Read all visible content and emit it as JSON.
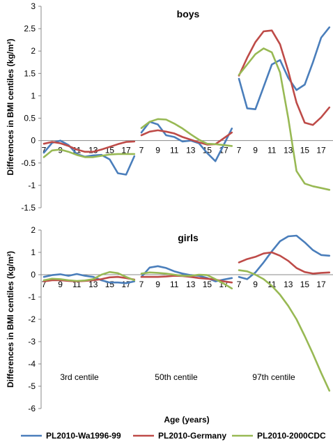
{
  "colors": {
    "PL2010-Wa1996-99": "#4a7ebb",
    "PL2010-Germany": "#be4b48",
    "PL2010-2000CDC": "#98b954"
  },
  "chart_data": {
    "type": "line",
    "xlabel": "Age (years)",
    "x_tick_labels": [
      "7",
      "9",
      "11",
      "13",
      "15",
      "17"
    ],
    "legend": [
      "PL2010-Wa1996-99",
      "PL2010-Germany",
      "PL2010-2000CDC"
    ],
    "legend_position": "bottom",
    "group_labels": [
      "3rd centile",
      "50th centile",
      "97th centile"
    ],
    "ages": [
      7,
      8,
      9,
      10,
      11,
      12,
      13,
      14,
      15,
      16,
      17,
      18
    ],
    "panels": [
      {
        "title": "boys",
        "ylabel": "Differences in BMI centiles (kg/m²)",
        "ylim": [
          -1.5,
          3
        ],
        "yticks": [
          "3",
          "2.5",
          "2",
          "1.5",
          "1",
          "0.5",
          "0",
          "-0.5",
          "-1",
          "-1.5"
        ],
        "groups": [
          {
            "centile": "3rd centile",
            "series": [
              {
                "name": "PL2010-Wa1996-99",
                "values": [
                  -0.27,
                  -0.05,
                  0.0,
                  -0.1,
                  -0.3,
                  -0.36,
                  -0.33,
                  -0.32,
                  -0.42,
                  -0.73,
                  -0.76,
                  -0.35
                ]
              },
              {
                "name": "PL2010-Germany",
                "values": [
                  -0.07,
                  -0.03,
                  -0.06,
                  -0.12,
                  -0.2,
                  -0.25,
                  -0.25,
                  -0.2,
                  -0.14,
                  -0.08,
                  -0.03,
                  -0.02
                ]
              },
              {
                "name": "PL2010-2000CDC",
                "values": [
                  -0.37,
                  -0.22,
                  -0.2,
                  -0.25,
                  -0.32,
                  -0.37,
                  -0.37,
                  -0.34,
                  -0.31,
                  -0.3,
                  -0.3,
                  -0.3
                ]
              }
            ]
          },
          {
            "centile": "50th centile",
            "series": [
              {
                "name": "PL2010-Wa1996-99",
                "values": [
                  0.18,
                  0.42,
                  0.36,
                  0.12,
                  0.08,
                  -0.02,
                  0.0,
                  -0.06,
                  -0.28,
                  -0.46,
                  -0.1,
                  0.27
                ]
              },
              {
                "name": "PL2010-Germany",
                "values": [
                  0.12,
                  0.2,
                  0.23,
                  0.2,
                  0.16,
                  0.08,
                  0.02,
                  -0.04,
                  -0.09,
                  -0.08,
                  0.05,
                  0.18
                ]
              },
              {
                "name": "PL2010-2000CDC",
                "values": [
                  0.28,
                  0.42,
                  0.48,
                  0.47,
                  0.38,
                  0.27,
                  0.14,
                  0.02,
                  -0.07,
                  -0.08,
                  -0.1,
                  -0.12
                ]
              }
            ]
          },
          {
            "centile": "97th centile",
            "series": [
              {
                "name": "PL2010-Wa1996-99",
                "values": [
                  1.38,
                  0.72,
                  0.7,
                  1.2,
                  1.7,
                  1.8,
                  1.4,
                  1.13,
                  1.25,
                  1.75,
                  2.3,
                  2.53
                ]
              },
              {
                "name": "PL2010-Germany",
                "values": [
                  1.45,
                  1.85,
                  2.2,
                  2.44,
                  2.46,
                  2.15,
                  1.55,
                  0.85,
                  0.4,
                  0.35,
                  0.52,
                  0.74
                ]
              },
              {
                "name": "PL2010-2000CDC",
                "values": [
                  1.47,
                  1.7,
                  1.93,
                  2.06,
                  1.97,
                  1.52,
                  0.5,
                  -0.68,
                  -0.96,
                  -1.02,
                  -1.06,
                  -1.1
                ]
              }
            ]
          }
        ]
      },
      {
        "title": "girls",
        "ylabel": "Differences in BMI centiles (kg/m²)",
        "ylim": [
          -6,
          2
        ],
        "yticks": [
          "2",
          "1",
          "0",
          "-1",
          "-2",
          "-3",
          "-4",
          "-5",
          "-6"
        ],
        "groups": [
          {
            "centile": "3rd centile",
            "series": [
              {
                "name": "PL2010-Wa1996-99",
                "values": [
                  -0.1,
                  -0.02,
                  0.02,
                  -0.05,
                  0.03,
                  -0.05,
                  -0.1,
                  -0.25,
                  -0.35,
                  -0.35,
                  -0.38,
                  -0.3
                ]
              },
              {
                "name": "PL2010-Germany",
                "values": [
                  -0.3,
                  -0.25,
                  -0.25,
                  -0.28,
                  -0.3,
                  -0.28,
                  -0.25,
                  -0.2,
                  -0.12,
                  -0.1,
                  -0.15,
                  -0.22
                ]
              },
              {
                "name": "PL2010-2000CDC",
                "values": [
                  -0.25,
                  -0.18,
                  -0.2,
                  -0.25,
                  -0.28,
                  -0.26,
                  -0.2,
                  0.0,
                  0.12,
                  0.07,
                  -0.1,
                  -0.25
                ]
              }
            ]
          },
          {
            "centile": "50th centile",
            "series": [
              {
                "name": "PL2010-Wa1996-99",
                "values": [
                  -0.1,
                  0.32,
                  0.38,
                  0.3,
                  0.15,
                  0.05,
                  -0.02,
                  -0.05,
                  -0.15,
                  -0.3,
                  -0.22,
                  -0.15
                ]
              },
              {
                "name": "PL2010-Germany",
                "values": [
                  -0.1,
                  -0.1,
                  -0.1,
                  -0.08,
                  -0.05,
                  -0.06,
                  -0.1,
                  -0.15,
                  -0.18,
                  -0.22,
                  -0.3,
                  -0.35
                ]
              },
              {
                "name": "PL2010-2000CDC",
                "values": [
                  0.05,
                  0.1,
                  0.08,
                  0.05,
                  0.0,
                  -0.05,
                  -0.05,
                  0.0,
                  -0.02,
                  -0.2,
                  -0.4,
                  -0.62
                ]
              }
            ]
          },
          {
            "centile": "97th centile",
            "series": [
              {
                "name": "PL2010-Wa1996-99",
                "values": [
                  -0.1,
                  -0.2,
                  0.1,
                  0.55,
                  1.05,
                  1.5,
                  1.72,
                  1.75,
                  1.45,
                  1.1,
                  0.88,
                  0.85
                ]
              },
              {
                "name": "PL2010-Germany",
                "values": [
                  0.55,
                  0.7,
                  0.8,
                  0.95,
                  1.0,
                  0.85,
                  0.62,
                  0.3,
                  0.12,
                  0.05,
                  0.08,
                  0.1
                ]
              },
              {
                "name": "PL2010-2000CDC",
                "values": [
                  0.2,
                  0.15,
                  0.0,
                  -0.2,
                  -0.5,
                  -0.9,
                  -1.4,
                  -2.0,
                  -2.75,
                  -3.55,
                  -4.4,
                  -5.2
                ]
              }
            ]
          }
        ]
      }
    ]
  }
}
